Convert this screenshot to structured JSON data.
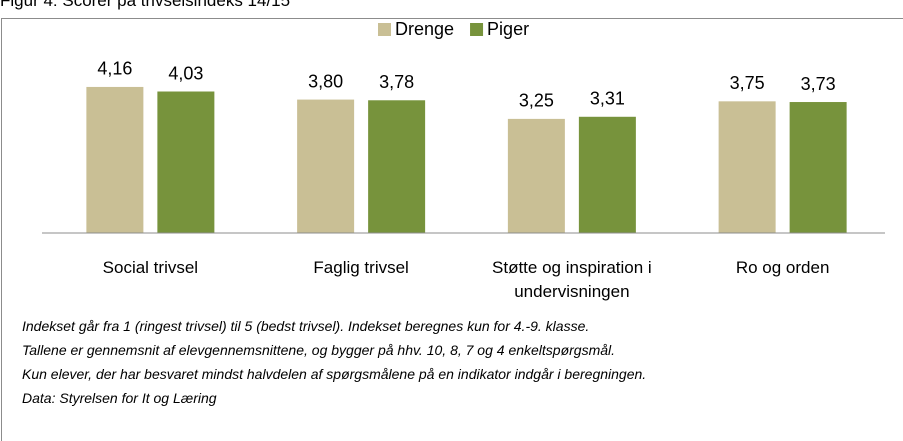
{
  "chart_data": {
    "type": "bar",
    "title": "Figur 4: Scorer på trivselsindeks 14/15",
    "categories": [
      "Social trivsel",
      "Faglig trivsel",
      "Støtte og inspiration i undervisningen",
      "Ro og orden"
    ],
    "series": [
      {
        "name": "Drenge",
        "color": "#c9bf95",
        "values": [
          4.16,
          3.8,
          3.25,
          3.75
        ],
        "value_labels": [
          "4,16",
          "3,80",
          "3,25",
          "3,75"
        ]
      },
      {
        "name": "Piger",
        "color": "#77933c",
        "values": [
          4.03,
          3.78,
          3.31,
          3.73
        ],
        "value_labels": [
          "4,03",
          "3,78",
          "3,31",
          "3,73"
        ]
      }
    ],
    "ylim": [
      0,
      4.5
    ],
    "legend": "top",
    "notes": [
      "Indekset går fra 1 (ringest trivsel) til 5 (bedst trivsel). Indekset beregnes kun for  4.-9. klasse.",
      "Tallene er gennemsnit af elevgennemsnittene, og bygger på hhv. 10, 8, 7 og 4 enkeltspørgsmål.",
      "Kun elever, der har besvaret mindst halvdelen af spørgsmålene på en indikator indgår i beregningen.",
      "Data: Styrelsen for It og Læring"
    ]
  }
}
